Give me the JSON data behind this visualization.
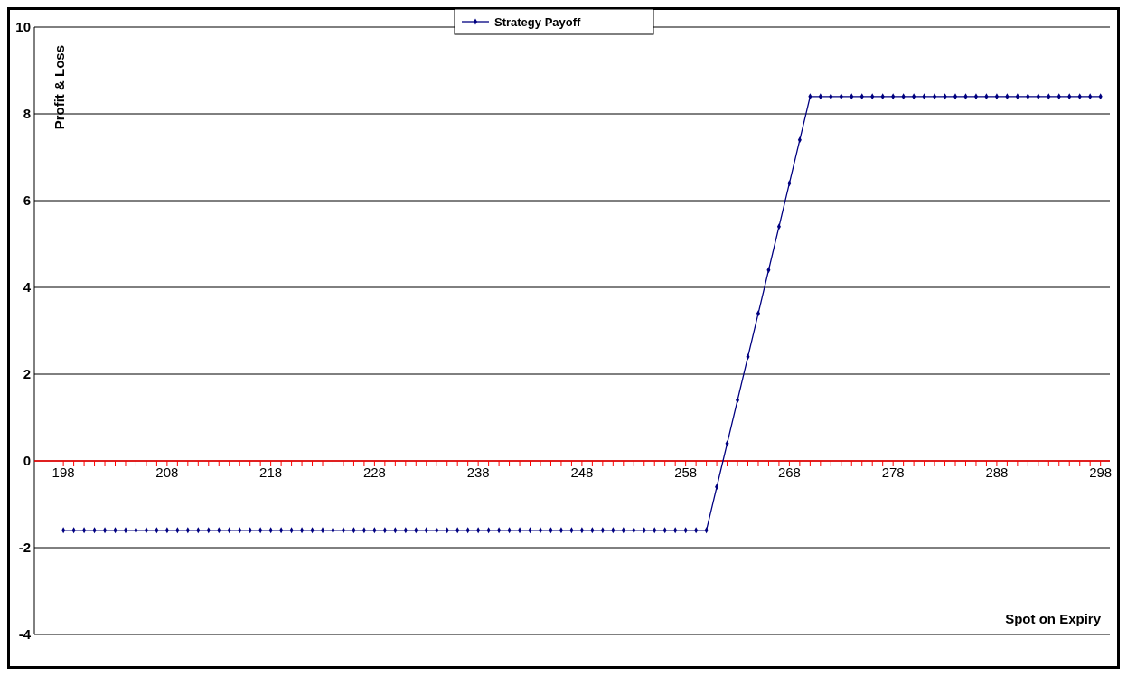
{
  "chart_data": {
    "type": "line",
    "xlabel": "Spot on Expiry",
    "ylabel": "Profit & Loss",
    "legend": "top",
    "grid": "y",
    "marker": "diamond",
    "line_style": "solid",
    "xlim": [
      195.2,
      298.9
    ],
    "ylim": [
      -4,
      10
    ],
    "yticks": [
      -4,
      -2,
      0,
      2,
      4,
      6,
      8,
      10
    ],
    "xticks": [
      198,
      {
        "value": 199,
        "label": null
      },
      {
        "value": 200,
        "label": null
      },
      {
        "value": 201,
        "label": null
      },
      {
        "value": 202,
        "label": null
      },
      {
        "value": 203,
        "label": null
      },
      {
        "value": 204,
        "label": null
      },
      {
        "value": 205,
        "label": null
      },
      {
        "value": 206,
        "label": null
      },
      {
        "value": 207,
        "label": null
      },
      208,
      {
        "value": 209,
        "label": null
      },
      {
        "value": 210,
        "label": null
      },
      {
        "value": 211,
        "label": null
      },
      {
        "value": 212,
        "label": null
      },
      {
        "value": 213,
        "label": null
      },
      {
        "value": 214,
        "label": null
      },
      {
        "value": 215,
        "label": null
      },
      {
        "value": 216,
        "label": null
      },
      {
        "value": 217,
        "label": null
      },
      218,
      {
        "value": 219,
        "label": null
      },
      {
        "value": 220,
        "label": null
      },
      {
        "value": 221,
        "label": null
      },
      {
        "value": 222,
        "label": null
      },
      {
        "value": 223,
        "label": null
      },
      {
        "value": 224,
        "label": null
      },
      {
        "value": 225,
        "label": null
      },
      {
        "value": 226,
        "label": null
      },
      {
        "value": 227,
        "label": null
      },
      228,
      {
        "value": 229,
        "label": null
      },
      {
        "value": 230,
        "label": null
      },
      {
        "value": 231,
        "label": null
      },
      {
        "value": 232,
        "label": null
      },
      {
        "value": 233,
        "label": null
      },
      {
        "value": 234,
        "label": null
      },
      {
        "value": 235,
        "label": null
      },
      {
        "value": 236,
        "label": null
      },
      {
        "value": 237,
        "label": null
      },
      238,
      {
        "value": 239,
        "label": null
      },
      {
        "value": 240,
        "label": null
      },
      {
        "value": 241,
        "label": null
      },
      {
        "value": 242,
        "label": null
      },
      {
        "value": 243,
        "label": null
      },
      {
        "value": 244,
        "label": null
      },
      {
        "value": 245,
        "label": null
      },
      {
        "value": 246,
        "label": null
      },
      {
        "value": 247,
        "label": null
      },
      248,
      {
        "value": 249,
        "label": null
      },
      {
        "value": 250,
        "label": null
      },
      {
        "value": 251,
        "label": null
      },
      {
        "value": 252,
        "label": null
      },
      {
        "value": 253,
        "label": null
      },
      {
        "value": 254,
        "label": null
      },
      {
        "value": 255,
        "label": null
      },
      {
        "value": 256,
        "label": null
      },
      {
        "value": 257,
        "label": null
      },
      258,
      {
        "value": 259,
        "label": null
      },
      {
        "value": 260,
        "label": null
      },
      {
        "value": 261,
        "label": null
      },
      {
        "value": 262,
        "label": null
      },
      {
        "value": 263,
        "label": null
      },
      {
        "value": 264,
        "label": null
      },
      {
        "value": 265,
        "label": null
      },
      {
        "value": 266,
        "label": null
      },
      {
        "value": 267,
        "label": null
      },
      268,
      {
        "value": 269,
        "label": null
      },
      {
        "value": 270,
        "label": null
      },
      {
        "value": 271,
        "label": null
      },
      {
        "value": 272,
        "label": null
      },
      {
        "value": 273,
        "label": null
      },
      {
        "value": 274,
        "label": null
      },
      {
        "value": 275,
        "label": null
      },
      {
        "value": 276,
        "label": null
      },
      {
        "value": 277,
        "label": null
      },
      278,
      {
        "value": 279,
        "label": null
      },
      {
        "value": 280,
        "label": null
      },
      {
        "value": 281,
        "label": null
      },
      {
        "value": 282,
        "label": null
      },
      {
        "value": 283,
        "label": null
      },
      {
        "value": 284,
        "label": null
      },
      {
        "value": 285,
        "label": null
      },
      {
        "value": 286,
        "label": null
      },
      {
        "value": 287,
        "label": null
      },
      288,
      {
        "value": 289,
        "label": null
      },
      {
        "value": 290,
        "label": null
      },
      {
        "value": 291,
        "label": null
      },
      {
        "value": 292,
        "label": null
      },
      {
        "value": 293,
        "label": null
      },
      {
        "value": 294,
        "label": null
      },
      {
        "value": 295,
        "label": null
      },
      {
        "value": 296,
        "label": null
      },
      {
        "value": 297,
        "label": null
      },
      298
    ],
    "x": [
      198,
      199,
      200,
      201,
      202,
      203,
      204,
      205,
      206,
      207,
      208,
      209,
      210,
      211,
      212,
      213,
      214,
      215,
      216,
      217,
      218,
      219,
      220,
      221,
      222,
      223,
      224,
      225,
      226,
      227,
      228,
      229,
      230,
      231,
      232,
      233,
      234,
      235,
      236,
      237,
      238,
      239,
      240,
      241,
      242,
      243,
      244,
      245,
      246,
      247,
      248,
      249,
      250,
      251,
      252,
      253,
      254,
      255,
      256,
      257,
      258,
      259,
      260,
      261,
      262,
      263,
      264,
      265,
      266,
      267,
      268,
      269,
      270,
      271,
      272,
      273,
      274,
      275,
      276,
      277,
      278,
      279,
      280,
      281,
      282,
      283,
      284,
      285,
      286,
      287,
      288,
      289,
      290,
      291,
      292,
      293,
      294,
      295,
      296,
      297,
      298
    ],
    "series": [
      {
        "name": "Strategy Payoff",
        "color": "#000080",
        "values": [
          -1.6,
          -1.6,
          -1.6,
          -1.6,
          -1.6,
          -1.6,
          -1.6,
          -1.6,
          -1.6,
          -1.6,
          -1.6,
          -1.6,
          -1.6,
          -1.6,
          -1.6,
          -1.6,
          -1.6,
          -1.6,
          -1.6,
          -1.6,
          -1.6,
          -1.6,
          -1.6,
          -1.6,
          -1.6,
          -1.6,
          -1.6,
          -1.6,
          -1.6,
          -1.6,
          -1.6,
          -1.6,
          -1.6,
          -1.6,
          -1.6,
          -1.6,
          -1.6,
          -1.6,
          -1.6,
          -1.6,
          -1.6,
          -1.6,
          -1.6,
          -1.6,
          -1.6,
          -1.6,
          -1.6,
          -1.6,
          -1.6,
          -1.6,
          -1.6,
          -1.6,
          -1.6,
          -1.6,
          -1.6,
          -1.6,
          -1.6,
          -1.6,
          -1.6,
          -1.6,
          -1.6,
          -1.6,
          -1.6,
          -0.6,
          0.4,
          1.4,
          2.4,
          3.4,
          4.4,
          5.4,
          6.4,
          7.4,
          8.4,
          8.4,
          8.4,
          8.4,
          8.4,
          8.4,
          8.4,
          8.4,
          8.4,
          8.4,
          8.4,
          8.4,
          8.4,
          8.4,
          8.4,
          8.4,
          8.4,
          8.4,
          8.4,
          8.4,
          8.4,
          8.4,
          8.4,
          8.4,
          8.4,
          8.4,
          8.4,
          8.4,
          8.4
        ]
      }
    ]
  }
}
